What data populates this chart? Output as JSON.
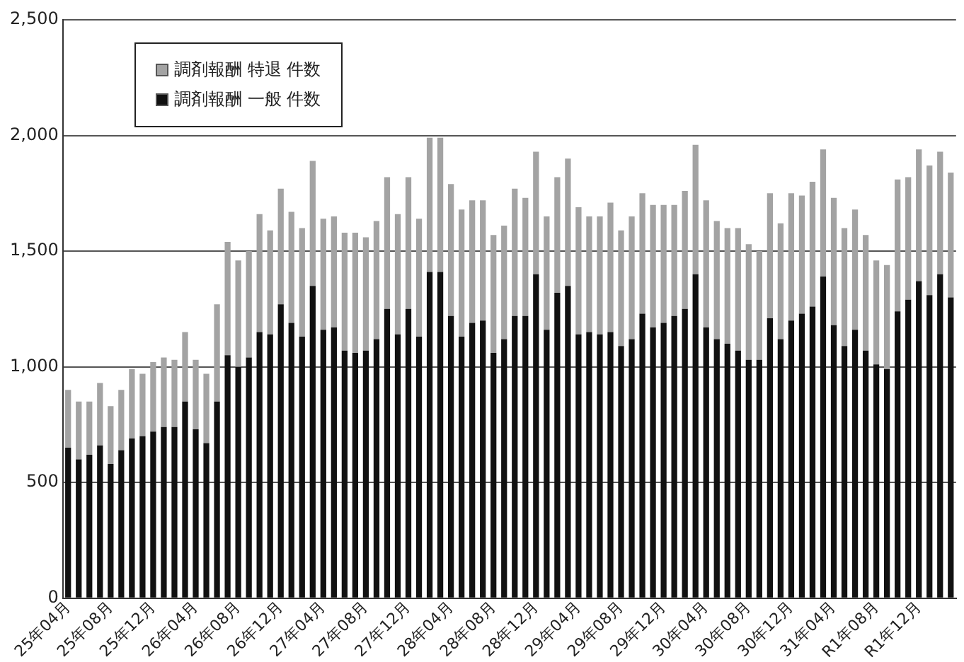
{
  "chart_data": {
    "type": "bar",
    "stacked": true,
    "categories": [
      "25年04月",
      null,
      null,
      null,
      "25年08月",
      null,
      null,
      null,
      "25年12月",
      null,
      null,
      null,
      "26年04月",
      null,
      null,
      null,
      "26年08月",
      null,
      null,
      null,
      "26年12月",
      null,
      null,
      null,
      "27年04月",
      null,
      null,
      null,
      "27年08月",
      null,
      null,
      null,
      "27年12月",
      null,
      null,
      null,
      "28年04月",
      null,
      null,
      null,
      "28年08月",
      null,
      null,
      null,
      "28年12月",
      null,
      null,
      null,
      "29年04月",
      null,
      null,
      null,
      "29年08月",
      null,
      null,
      null,
      "29年12月",
      null,
      null,
      null,
      "30年04月",
      null,
      null,
      null,
      "30年08月",
      null,
      null,
      null,
      "30年12月",
      null,
      null,
      null,
      "31年04月",
      null,
      null,
      null,
      "R1年08月",
      null,
      null,
      null,
      "R1年12月",
      null,
      null,
      null
    ],
    "series": [
      {
        "name": "調剤報酬 一般 件数",
        "color": "#111111",
        "values": [
          650,
          600,
          620,
          660,
          580,
          640,
          690,
          700,
          720,
          740,
          740,
          850,
          730,
          670,
          850,
          1050,
          1000,
          1040,
          1150,
          1140,
          1270,
          1190,
          1130,
          1350,
          1160,
          1170,
          1070,
          1060,
          1070,
          1120,
          1250,
          1140,
          1250,
          1130,
          1410,
          1410,
          1220,
          1130,
          1190,
          1200,
          1060,
          1120,
          1220,
          1220,
          1400,
          1160,
          1320,
          1350,
          1140,
          1150,
          1140,
          1150,
          1090,
          1120,
          1230,
          1170,
          1190,
          1220,
          1250,
          1400,
          1170,
          1120,
          1100,
          1070,
          1030,
          1030,
          1210,
          1120,
          1200,
          1230,
          1260,
          1390,
          1180,
          1090,
          1160,
          1070,
          1010,
          990,
          1240,
          1290,
          1370,
          1310,
          1400,
          1300
        ]
      },
      {
        "name": "調剤報酬 特退 件数",
        "color": "#a3a3a3",
        "values": [
          250,
          250,
          230,
          270,
          250,
          260,
          300,
          270,
          300,
          300,
          290,
          300,
          300,
          300,
          420,
          490,
          460,
          460,
          510,
          450,
          500,
          480,
          470,
          540,
          480,
          480,
          510,
          520,
          490,
          510,
          570,
          520,
          570,
          510,
          580,
          580,
          570,
          550,
          530,
          520,
          510,
          490,
          550,
          510,
          530,
          490,
          500,
          550,
          550,
          500,
          510,
          560,
          500,
          530,
          520,
          530,
          510,
          480,
          510,
          560,
          550,
          510,
          500,
          530,
          500,
          470,
          540,
          500,
          550,
          510,
          540,
          550,
          550,
          510,
          520,
          500,
          450,
          450,
          570,
          530,
          570,
          560,
          530,
          540
        ]
      }
    ],
    "ylim": [
      0,
      2500
    ],
    "yticks": [
      0,
      {
        "value": 500,
        "label": "500"
      },
      {
        "value": 1000,
        "label": "1,000"
      },
      {
        "value": 1500,
        "label": "1,500"
      },
      {
        "value": 2000,
        "label": "2,000"
      },
      {
        "value": 2500,
        "label": "2,500"
      }
    ],
    "grid": "y",
    "legend": "top left"
  }
}
